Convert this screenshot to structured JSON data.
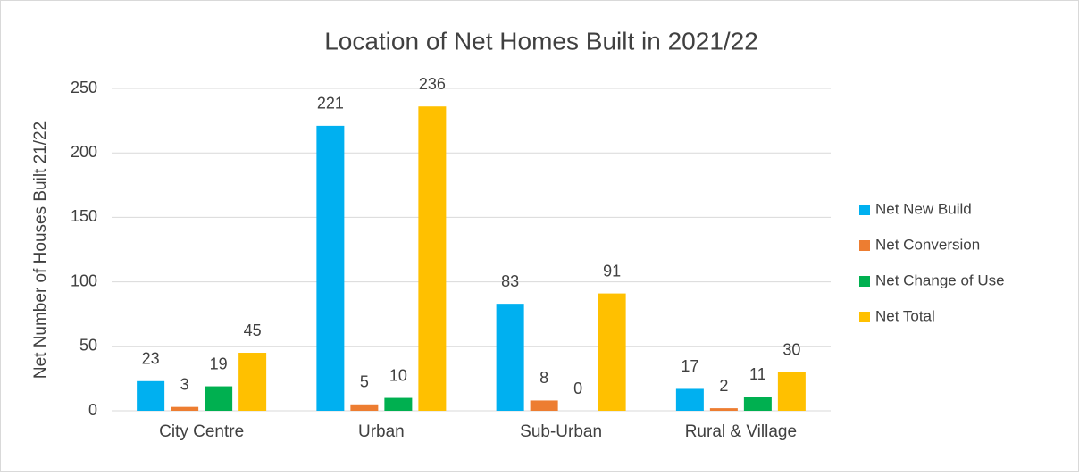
{
  "chart_data": {
    "type": "bar",
    "title": "Location of Net Homes Built in 2021/22",
    "y_label": "Net Number of Houses Built 21/22",
    "categories": [
      "City Centre",
      "Urban",
      "Sub-Urban",
      "Rural & Village"
    ],
    "series": [
      {
        "name": "Net New Build",
        "color": "#00b0f0",
        "values": [
          23,
          221,
          83,
          17
        ]
      },
      {
        "name": "Net Conversion",
        "color": "#ed7d31",
        "values": [
          3,
          5,
          8,
          2
        ]
      },
      {
        "name": "Net Change of Use",
        "color": "#00b050",
        "values": [
          19,
          10,
          0,
          11
        ]
      },
      {
        "name": "Net Total",
        "color": "#ffc000",
        "values": [
          45,
          236,
          91,
          30
        ]
      }
    ],
    "ylim": [
      0,
      250
    ],
    "yticks": [
      0,
      50,
      100,
      150,
      200,
      250
    ],
    "grid": true,
    "legend": "right"
  }
}
